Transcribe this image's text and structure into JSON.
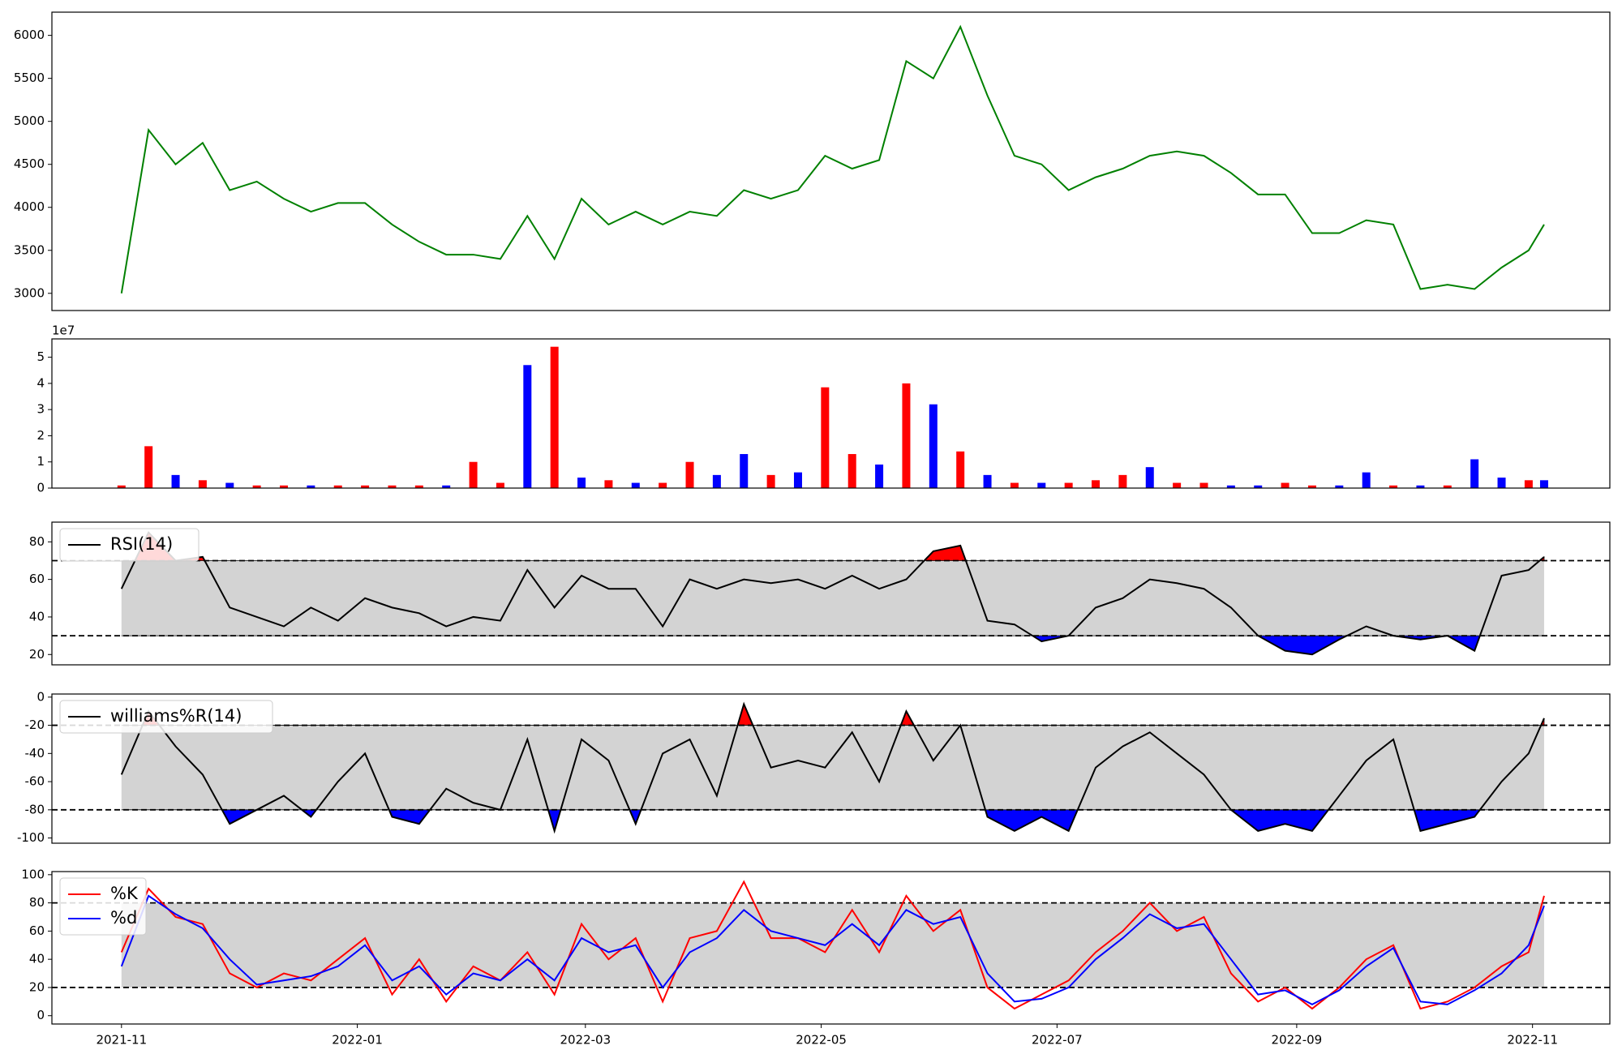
{
  "chart_data": [
    {
      "type": "line",
      "color": "green",
      "x": [
        "2021-11-01",
        "2021-11-08",
        "2021-11-15",
        "2021-11-22",
        "2021-11-29",
        "2021-12-06",
        "2021-12-13",
        "2021-12-20",
        "2021-12-27",
        "2022-01-03",
        "2022-01-10",
        "2022-01-17",
        "2022-01-24",
        "2022-01-31",
        "2022-02-07",
        "2022-02-14",
        "2022-02-21",
        "2022-02-28",
        "2022-03-07",
        "2022-03-14",
        "2022-03-21",
        "2022-03-28",
        "2022-04-04",
        "2022-04-11",
        "2022-04-18",
        "2022-04-25",
        "2022-05-02",
        "2022-05-09",
        "2022-05-16",
        "2022-05-23",
        "2022-05-30",
        "2022-06-06",
        "2022-06-13",
        "2022-06-20",
        "2022-06-27",
        "2022-07-04",
        "2022-07-11",
        "2022-07-18",
        "2022-07-25",
        "2022-08-01",
        "2022-08-08",
        "2022-08-15",
        "2022-08-22",
        "2022-08-29",
        "2022-09-05",
        "2022-09-12",
        "2022-09-19",
        "2022-09-26",
        "2022-10-03",
        "2022-10-10",
        "2022-10-17",
        "2022-10-24",
        "2022-10-31",
        "2022-11-04"
      ],
      "xlim": [
        "2021-10-14",
        "2022-11-21"
      ],
      "values": [
        3000,
        4900,
        4500,
        4750,
        4200,
        4300,
        4100,
        3950,
        4050,
        4050,
        3800,
        3600,
        3450,
        3450,
        3400,
        3900,
        3400,
        4100,
        3800,
        3950,
        3800,
        3950,
        3900,
        4200,
        4100,
        4200,
        4600,
        4450,
        4550,
        5700,
        5500,
        6100,
        5300,
        4600,
        4500,
        4200,
        4350,
        4450,
        4600,
        4650,
        4600,
        4400,
        4150,
        4150,
        3700,
        3700,
        3850,
        3800,
        3050,
        3100,
        3050,
        3300,
        3500,
        3800
      ],
      "ylim": [
        2800,
        6270
      ],
      "yticks": [
        3000,
        3500,
        4000,
        4500,
        5000,
        5500,
        6000
      ]
    },
    {
      "type": "bar",
      "offset_label": "1e7",
      "values": [
        0.1,
        1.6,
        0.5,
        0.3,
        0.2,
        0.1,
        0.1,
        0.1,
        0.1,
        0.1,
        0.1,
        0.1,
        0.1,
        1.0,
        0.2,
        4.7,
        5.4,
        0.4,
        0.3,
        0.2,
        0.2,
        1.0,
        0.5,
        1.3,
        0.5,
        0.6,
        3.85,
        1.3,
        0.9,
        4.0,
        3.2,
        1.4,
        0.5,
        0.2,
        0.2,
        0.2,
        0.3,
        0.5,
        0.8,
        0.2,
        0.2,
        0.1,
        0.1,
        0.2,
        0.1,
        0.1,
        0.6,
        0.1,
        0.1,
        0.1,
        1.1,
        0.4,
        0.3,
        0.3
      ],
      "colors": [
        "red",
        "red",
        "blue",
        "red",
        "blue",
        "red",
        "red",
        "blue",
        "red",
        "red",
        "red",
        "red",
        "blue",
        "red",
        "red",
        "blue",
        "red",
        "blue",
        "red",
        "blue",
        "red",
        "red",
        "blue",
        "blue",
        "red",
        "blue",
        "red",
        "red",
        "blue",
        "red",
        "blue",
        "red",
        "blue",
        "red",
        "blue",
        "red",
        "red",
        "red",
        "blue",
        "red",
        "red",
        "blue",
        "blue",
        "red",
        "red",
        "blue",
        "blue",
        "red",
        "blue",
        "red",
        "blue",
        "blue",
        "red",
        "blue"
      ],
      "ylim": [
        0,
        5.7
      ],
      "yticks": [
        0,
        1,
        2,
        3,
        4,
        5
      ]
    },
    {
      "type": "band-line",
      "legend": "upper left",
      "levels": [
        30,
        70
      ],
      "band_color": "lightgray",
      "upper_fill": "red",
      "lower_fill": "blue",
      "series": [
        {
          "name": "RSI(14)",
          "color": "black",
          "values": [
            55,
            85,
            70,
            72,
            45,
            40,
            35,
            45,
            38,
            50,
            45,
            42,
            35,
            40,
            38,
            65,
            45,
            62,
            55,
            55,
            35,
            60,
            55,
            60,
            58,
            60,
            55,
            62,
            55,
            60,
            75,
            78,
            38,
            36,
            27,
            30,
            45,
            50,
            60,
            58,
            55,
            45,
            30,
            22,
            20,
            28,
            35,
            30,
            28,
            30,
            22,
            62,
            65,
            72
          ]
        }
      ],
      "ylim": [
        14.5,
        90.5
      ],
      "yticks": [
        20,
        40,
        60,
        80
      ]
    },
    {
      "type": "band-line",
      "legend": "upper left",
      "levels": [
        -80,
        -20
      ],
      "band_color": "lightgray",
      "upper_fill": "red",
      "lower_fill": "blue",
      "series": [
        {
          "name": "williams%R(14)",
          "color": "black",
          "values": [
            -55,
            -10,
            -35,
            -55,
            -90,
            -80,
            -70,
            -85,
            -60,
            -40,
            -85,
            -90,
            -65,
            -75,
            -80,
            -30,
            -95,
            -30,
            -45,
            -90,
            -40,
            -30,
            -70,
            -5,
            -50,
            -45,
            -50,
            -25,
            -60,
            -10,
            -45,
            -20,
            -85,
            -95,
            -85,
            -95,
            -50,
            -35,
            -25,
            -40,
            -55,
            -80,
            -95,
            -90,
            -95,
            -70,
            -45,
            -30,
            -95,
            -90,
            -85,
            -60,
            -40,
            -15
          ]
        }
      ],
      "ylim": [
        -103.7,
        2.2
      ],
      "yticks": [
        -100,
        -80,
        -60,
        -40,
        -20,
        0
      ]
    },
    {
      "type": "band-line",
      "legend": "upper left",
      "levels": [
        20,
        80
      ],
      "band_color": "lightgray",
      "series": [
        {
          "name": "%K",
          "color": "red",
          "values": [
            45,
            90,
            70,
            65,
            30,
            20,
            30,
            25,
            40,
            55,
            15,
            40,
            10,
            35,
            25,
            45,
            15,
            65,
            40,
            55,
            10,
            55,
            60,
            95,
            55,
            55,
            45,
            75,
            45,
            85,
            60,
            75,
            20,
            5,
            15,
            25,
            45,
            60,
            80,
            60,
            70,
            30,
            10,
            20,
            5,
            20,
            40,
            50,
            5,
            10,
            20,
            35,
            45,
            85
          ]
        },
        {
          "name": "%d",
          "color": "blue",
          "values": [
            35,
            85,
            72,
            62,
            40,
            22,
            25,
            28,
            35,
            50,
            25,
            35,
            15,
            30,
            25,
            40,
            25,
            55,
            45,
            50,
            20,
            45,
            55,
            75,
            60,
            55,
            50,
            65,
            50,
            75,
            65,
            70,
            30,
            10,
            12,
            20,
            40,
            55,
            72,
            62,
            65,
            40,
            15,
            18,
            8,
            18,
            35,
            48,
            10,
            8,
            18,
            30,
            50,
            78
          ]
        }
      ],
      "ylim": [
        -5.9,
        102.2
      ],
      "yticks": [
        0,
        20,
        40,
        60,
        80,
        100
      ],
      "xticks": [
        {
          "value": "2021-11-01",
          "label": "2021-11"
        },
        {
          "value": "2022-01-01",
          "label": "2022-01"
        },
        {
          "value": "2022-03-01",
          "label": "2022-03"
        },
        {
          "value": "2022-05-01",
          "label": "2022-05"
        },
        {
          "value": "2022-07-01",
          "label": "2022-07"
        },
        {
          "value": "2022-09-01",
          "label": "2022-09"
        },
        {
          "value": "2022-11-01",
          "label": "2022-11"
        }
      ]
    }
  ]
}
